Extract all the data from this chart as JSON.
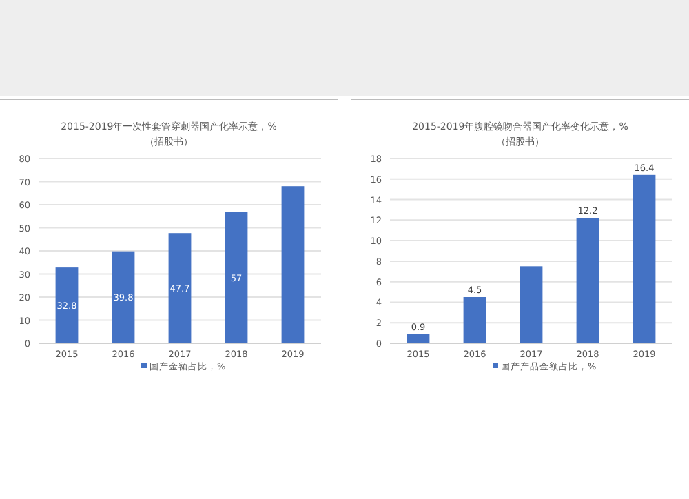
{
  "chart_data": [
    {
      "type": "bar",
      "title": "2015-2019年一次性套管穿刺器国产化率示意，%",
      "subtitle": "（招股书）",
      "categories": [
        "2015",
        "2016",
        "2017",
        "2018",
        "2019"
      ],
      "series": [
        {
          "name": "国产金额占比，%",
          "color": "#4472c4",
          "values": [
            32.8,
            39.8,
            47.7,
            57,
            68
          ],
          "value_labels": [
            "32.8",
            "39.8",
            "47.7",
            "57",
            null
          ]
        }
      ],
      "ylim": [
        0,
        80
      ],
      "yticks": [
        0,
        10,
        20,
        30,
        40,
        50,
        60,
        70,
        80
      ],
      "grid": "y",
      "legend": "bottom"
    },
    {
      "type": "bar",
      "title": "2015-2019年腹腔镜吻合器国产化率变化示意，%",
      "subtitle": "（招股书）",
      "categories": [
        "2015",
        "2016",
        "2017",
        "2018",
        "2019"
      ],
      "series": [
        {
          "name": "国产产品金额占比，%",
          "color": "#4472c4",
          "values": [
            0.9,
            4.5,
            7.5,
            12.2,
            16.4
          ],
          "value_labels": [
            "0.9",
            "4.5",
            null,
            "12.2",
            "16.4"
          ]
        }
      ],
      "ylim": [
        0,
        18
      ],
      "yticks": [
        0,
        2,
        4,
        6,
        8,
        10,
        12,
        14,
        16,
        18
      ],
      "grid": "y",
      "legend": "bottom"
    }
  ]
}
